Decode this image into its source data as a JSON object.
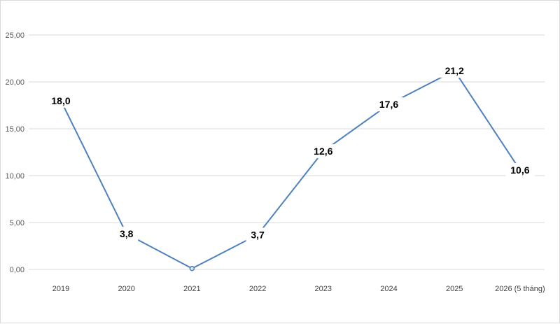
{
  "chart_data": {
    "type": "line",
    "categories": [
      "2019",
      "2020",
      "2021",
      "2022",
      "2023",
      "2024",
      "2025",
      "2026 (5 tháng)"
    ],
    "series": [
      {
        "values": [
          18.0,
          3.8,
          0.1,
          3.7,
          12.6,
          17.6,
          21.2,
          10.6
        ],
        "labels": [
          "18,0",
          "3,8",
          "",
          "3,7",
          "12,6",
          "17,6",
          "21,2",
          "10,6"
        ]
      }
    ],
    "yticks": [
      "0,00",
      "5,00",
      "10,00",
      "15,00",
      "20,00",
      "25,00"
    ],
    "ylim": [
      0,
      25
    ],
    "grid": true,
    "legend": "none",
    "line_color": "#4f81bd",
    "grid_color": "#d9d9d9"
  }
}
